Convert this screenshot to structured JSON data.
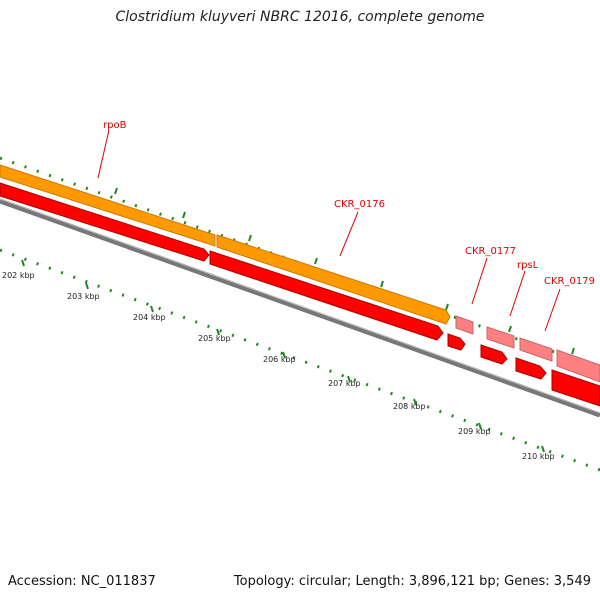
{
  "title": "Clostridium kluyveri NBRC 12016, complete genome",
  "footer": {
    "accession": "Accession: NC_011837",
    "summary": "Topology: circular; Length: 3,896,121 bp; Genes: 3,549"
  },
  "colors": {
    "orange_track": "#ff9900",
    "red_track": "#ff0000",
    "pink_track": "#ff8080",
    "label": "#dd0000",
    "tick": "#228822",
    "backbone": "#808080"
  },
  "genes": [
    {
      "name": "rpoB",
      "type": "cds"
    },
    {
      "name": "CKR_0176",
      "type": "cds"
    },
    {
      "name": "CKR_0177",
      "type": "cds"
    },
    {
      "name": "rpsL",
      "type": "cds"
    },
    {
      "name": "CKR_0179",
      "type": "cds"
    }
  ],
  "scale_labels": [
    "202 kbp",
    "203 kbp",
    "204 kbp",
    "205 kbp",
    "206 kbp",
    "207 kbp",
    "208 kbp",
    "209 kbp",
    "210 kbp"
  ]
}
